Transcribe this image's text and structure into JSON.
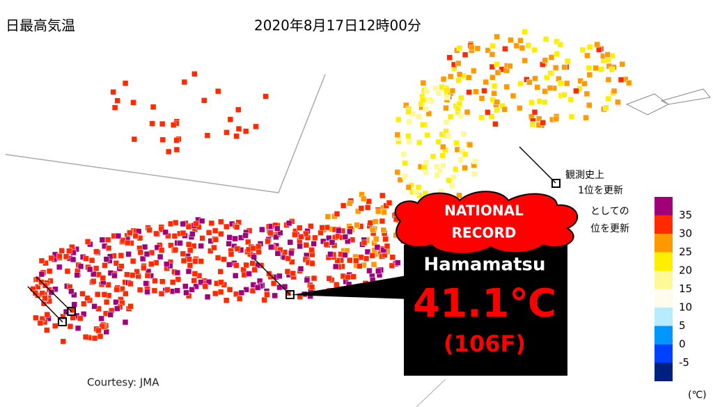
{
  "header": {
    "title": "日最高気温",
    "timestamp": "2020年8月17日12時00分"
  },
  "callout": {
    "badge_line1": "NATIONAL",
    "badge_line2": "RECORD",
    "city": "Hamamatsu",
    "temperature": "41.1℃",
    "fahrenheit": "(106F)"
  },
  "annotations": {
    "record_line1": "観測史上",
    "record_line2": "1位を更新",
    "tie_line1": "としての",
    "tie_line2": "位を更新"
  },
  "credit": "Courtesy: JMA",
  "legend": {
    "unit": "(℃)",
    "labels": [
      35,
      30,
      25,
      20,
      15,
      10,
      5,
      0,
      -5
    ],
    "colors": [
      "#a0007a",
      "#ff2a00",
      "#ff9900",
      "#ffee00",
      "#fff899",
      "#fffcee",
      "#b9ebff",
      "#0096ff",
      "#0041ff",
      "#002080"
    ]
  }
}
